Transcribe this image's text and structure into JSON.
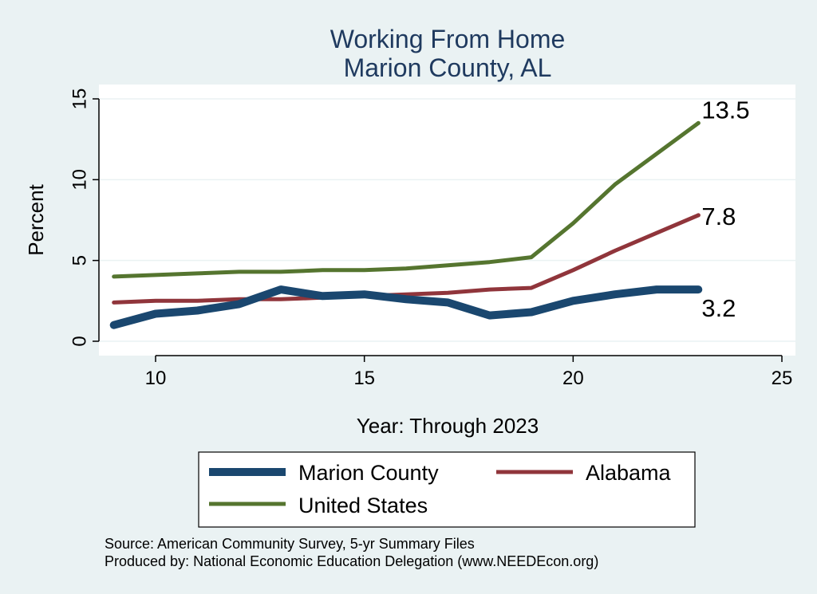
{
  "chart_data": {
    "type": "line",
    "title": [
      "Working From Home",
      "Marion County, AL"
    ],
    "xlabel": "Year: Through 2023",
    "ylabel": "Percent",
    "xlim": [
      9,
      25
    ],
    "ylim": [
      0,
      15
    ],
    "xticks": [
      10,
      15,
      20,
      25
    ],
    "yticks": [
      0,
      5,
      10,
      15
    ],
    "grid": "horizontal",
    "legend_placement": "bottom",
    "series": [
      {
        "name": "Marion County",
        "color": "#1a476f",
        "x": [
          9,
          10,
          11,
          12,
          13,
          14,
          15,
          16,
          17,
          18,
          19,
          20,
          21,
          22,
          23
        ],
        "y": [
          1.0,
          1.7,
          1.9,
          2.3,
          3.2,
          2.8,
          2.9,
          2.6,
          2.4,
          1.6,
          1.8,
          2.5,
          2.9,
          3.2,
          3.2
        ],
        "end_label": "3.2"
      },
      {
        "name": "Alabama",
        "color": "#90353b",
        "x": [
          9,
          10,
          11,
          12,
          13,
          14,
          15,
          16,
          17,
          18,
          19,
          20,
          21,
          22,
          23
        ],
        "y": [
          2.4,
          2.5,
          2.5,
          2.6,
          2.6,
          2.7,
          2.8,
          2.9,
          3.0,
          3.2,
          3.3,
          4.4,
          5.6,
          6.7,
          7.8
        ],
        "end_label": "7.8"
      },
      {
        "name": "United States",
        "color": "#55752f",
        "x": [
          9,
          10,
          11,
          12,
          13,
          14,
          15,
          16,
          17,
          18,
          19,
          20,
          21,
          22,
          23
        ],
        "y": [
          4.0,
          4.1,
          4.2,
          4.3,
          4.3,
          4.4,
          4.4,
          4.5,
          4.7,
          4.9,
          5.2,
          7.3,
          9.7,
          11.6,
          13.5
        ],
        "end_label": "13.5"
      }
    ]
  },
  "notes": [
    "Source: American Community Survey, 5-yr Summary Files",
    "Produced by: National Economic Education Delegation (www.NEEDEcon.org)"
  ]
}
